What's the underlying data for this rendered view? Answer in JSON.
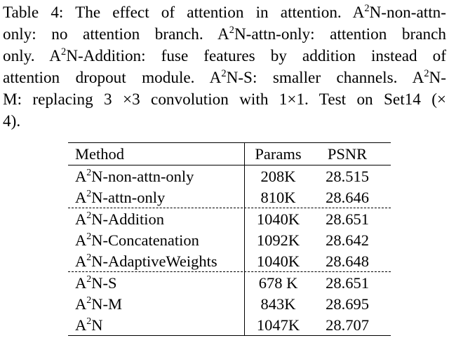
{
  "caption": {
    "lines": [
      "Table 4: The effect of attention in attention. A²N-non-attn-",
      "only: no attention branch. A²N-attn-only: attention branch",
      "only. A²N-Addition: fuse features by addition instead of",
      "attention dropout module. A²N-S: smaller channels. A²N-",
      "M: replacing 3 ×3 convolution with 1×1. Test on Set14 (×",
      "4)."
    ]
  },
  "table": {
    "headers": [
      "Method",
      "Params",
      "PSNR"
    ],
    "rows": [
      {
        "method": "A²N-non-attn-only",
        "params": "208K",
        "psnr": "28.515"
      },
      {
        "method": "A²N-attn-only",
        "params": "810K",
        "psnr": "28.646"
      },
      {
        "method": "A²N-Addition",
        "params": "1040K",
        "psnr": "28.651"
      },
      {
        "method": "A²N-Concatenation",
        "params": "1092K",
        "psnr": "28.642"
      },
      {
        "method": "A²N-AdaptiveWeights",
        "params": "1040K",
        "psnr": "28.648"
      },
      {
        "method": "A²N-S",
        "params": "678 K",
        "psnr": "28.651"
      },
      {
        "method": "A²N-M",
        "params": "843K",
        "psnr": "28.695"
      },
      {
        "method": "A²N",
        "params": "1047K",
        "psnr": "28.707"
      }
    ]
  }
}
